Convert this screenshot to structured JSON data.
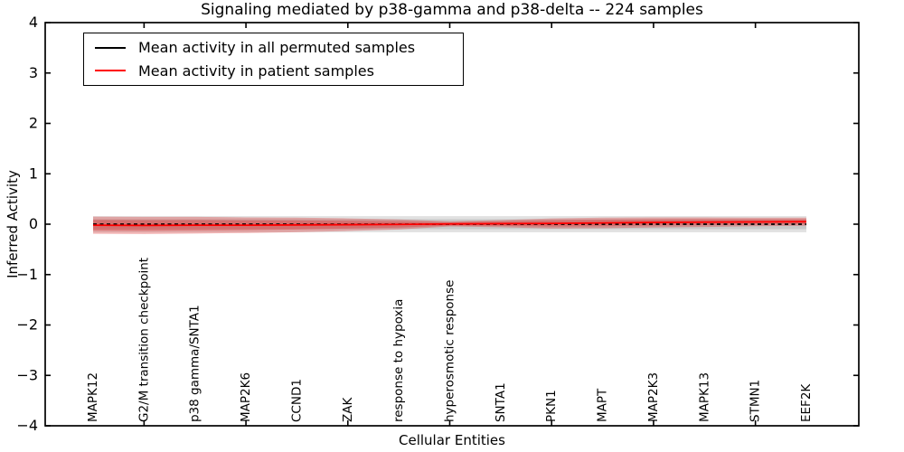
{
  "chart_data": {
    "type": "line",
    "title": "Signaling mediated by p38-gamma and p38-delta -- 224 samples",
    "xlabel": "Cellular Entities",
    "ylabel": "Inferred Activity",
    "ylim": [
      -4,
      4
    ],
    "ytick_values": [
      4,
      3,
      2,
      1,
      0,
      -1,
      -2,
      -3,
      -4
    ],
    "ytick_labels": [
      "4",
      "3",
      "2",
      "1",
      "0",
      "−1",
      "−2",
      "−3",
      "−4"
    ],
    "grid": false,
    "legend_position": "upper left",
    "categories": [
      "MAPK12",
      "G2/M transition checkpoint",
      "p38 gamma/SNTA1",
      "MAP2K6",
      "CCND1",
      "ZAK",
      "response to hypoxia",
      "hyperosmotic response",
      "SNTA1",
      "PKN1",
      "MAPT",
      "MAP2K3",
      "MAPK13",
      "STMN1",
      "EEF2K"
    ],
    "series": [
      {
        "name": "Mean activity in all permuted samples",
        "color": "#000000",
        "line_style": "dashed",
        "values": [
          0,
          0,
          0,
          0,
          0,
          0,
          0,
          0,
          0,
          0,
          0,
          0,
          0,
          0,
          0
        ],
        "band_halfwidth": [
          0.16,
          0.16,
          0.16,
          0.16,
          0.16,
          0.16,
          0.16,
          0.16,
          0.16,
          0.16,
          0.16,
          0.16,
          0.16,
          0.16,
          0.16
        ],
        "band_color": "#787878",
        "band_alpha": 0.22
      },
      {
        "name": "Mean activity in patient samples",
        "color": "#ff0000",
        "line_style": "solid",
        "values": [
          -0.02,
          -0.025,
          -0.02,
          -0.02,
          -0.015,
          -0.01,
          -0.005,
          0.005,
          0.01,
          0.015,
          0.025,
          0.035,
          0.04,
          0.045,
          0.05
        ],
        "band_halfwidth": [
          0.17,
          0.17,
          0.165,
          0.155,
          0.145,
          0.125,
          0.1,
          0.05,
          0.07,
          0.1,
          0.105,
          0.1,
          0.095,
          0.085,
          0.08
        ],
        "band_color": "#dc2828",
        "band_alpha": 0.33
      }
    ]
  }
}
